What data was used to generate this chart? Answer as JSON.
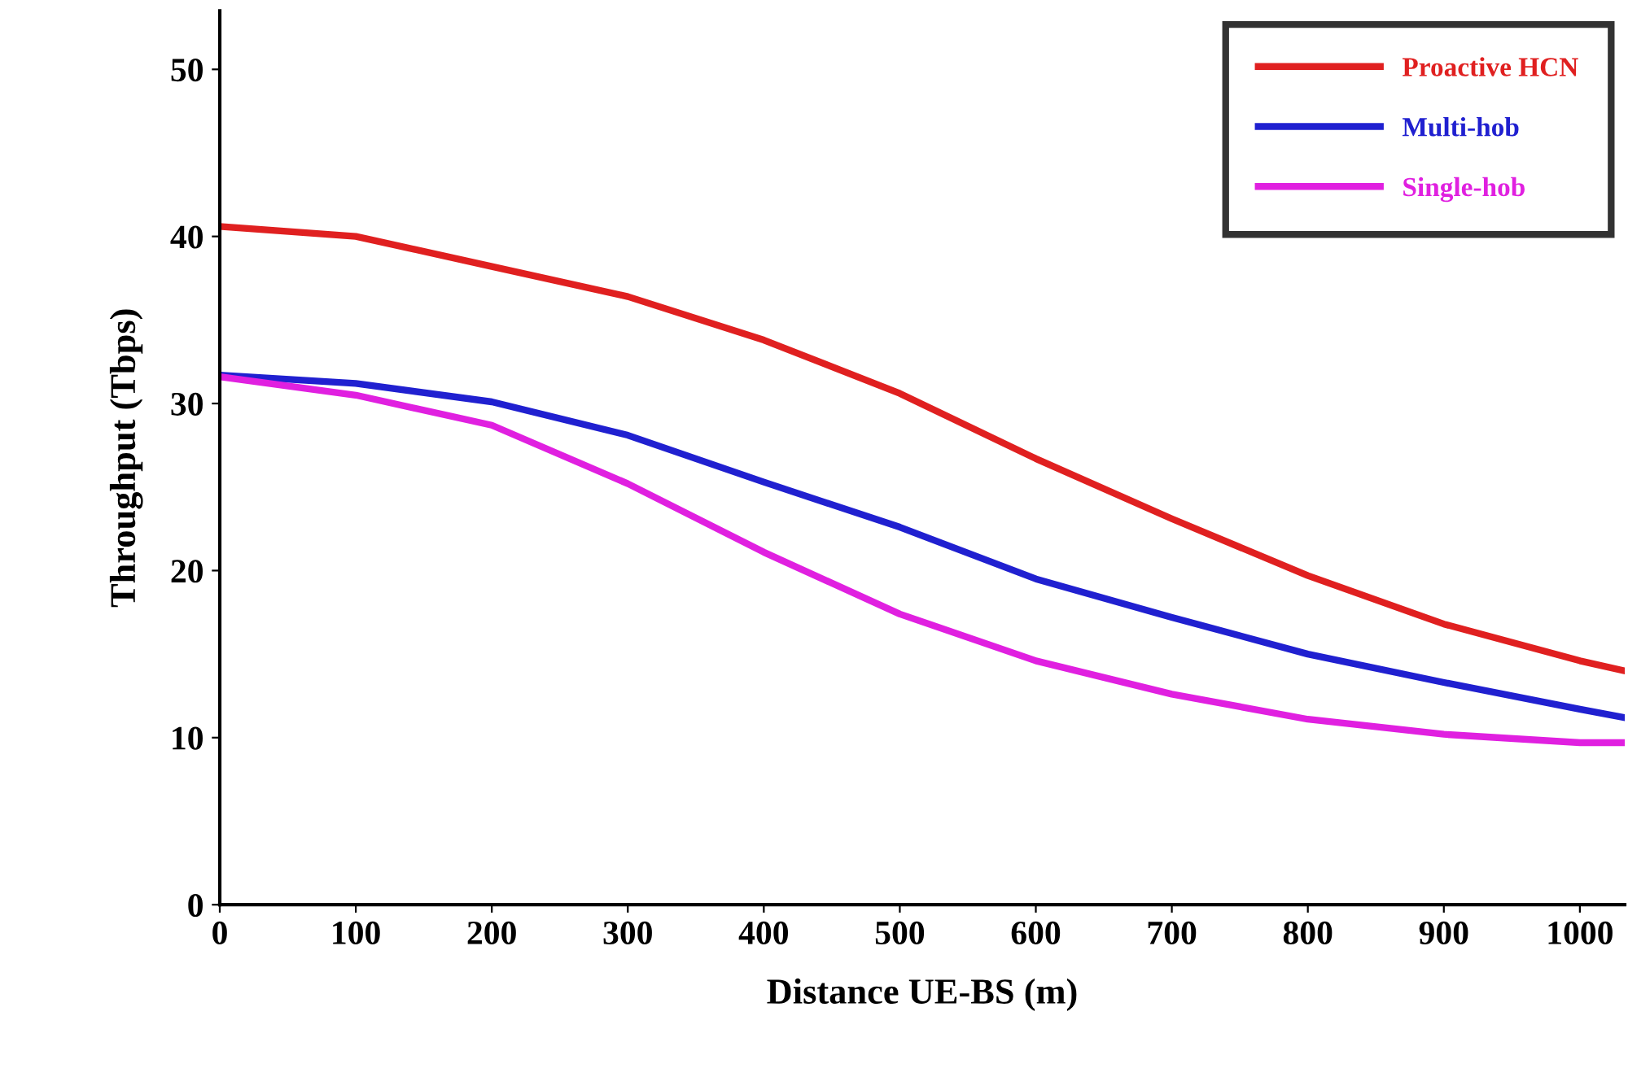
{
  "chart_data": {
    "type": "line",
    "xlabel": "Distance UE-BS (m)",
    "ylabel": "Throughput (Tbps)",
    "x": [
      0,
      100,
      200,
      300,
      400,
      500,
      600,
      700,
      800,
      900,
      1000,
      1033
    ],
    "series": [
      {
        "name": "Proactive HCN",
        "color": "#e02020",
        "values": [
          40.6,
          40.0,
          38.2,
          36.4,
          33.8,
          30.6,
          26.7,
          23.1,
          19.7,
          16.8,
          14.6,
          14.0
        ]
      },
      {
        "name": "Multi-hob",
        "color": "#2020d0",
        "values": [
          31.7,
          31.2,
          30.1,
          28.1,
          25.3,
          22.6,
          19.5,
          17.2,
          15.0,
          13.3,
          11.7,
          11.2
        ]
      },
      {
        "name": "Single-hob",
        "color": "#e020e0",
        "values": [
          31.6,
          30.5,
          28.7,
          25.2,
          21.1,
          17.4,
          14.6,
          12.6,
          11.1,
          10.2,
          9.7,
          9.7
        ]
      }
    ],
    "xlim": [
      0,
      1033
    ],
    "ylim": [
      0,
      53.5
    ],
    "xticks": [
      0,
      100,
      200,
      300,
      400,
      500,
      600,
      700,
      800,
      900,
      1000
    ],
    "yticks": [
      0,
      10,
      20,
      30,
      40,
      50
    ],
    "grid": false,
    "legend": "top right",
    "marker": "none",
    "line_style": "solid"
  }
}
